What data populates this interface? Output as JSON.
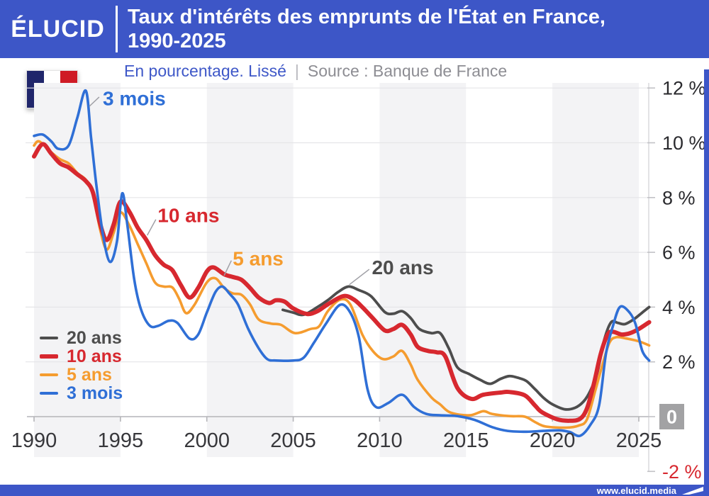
{
  "header": {
    "logo": "ÉLUCID",
    "title_line1": "Taux d'intérêts des emprunts de l'État en France,",
    "title_line2": "1990-2025"
  },
  "subtitle": {
    "measure": "En pourcentage. Lissé",
    "separator": "|",
    "source": "Source : Banque de France"
  },
  "footer": {
    "url": "www.elucid.media"
  },
  "icons": {
    "france_flag": "france-flag-icon",
    "elucid_pennant": "elucid-flag-icon"
  },
  "colors": {
    "brand_blue": "#3d56c7",
    "band_gray": "#f3f3f5",
    "gridline": "#e5e5e8",
    "zero_axis": "#b4b4b8",
    "axis_line": "#d0d0d4",
    "tick": "#c2c2c6",
    "x_label": "#37373b",
    "y_label": "#2a2a2e",
    "zero_box": "#a2a2a4",
    "negative_label": "#d7282f",
    "connector": "#a0a0a6"
  },
  "chart_data": {
    "type": "line",
    "title": "Taux d'intérêts des emprunts de l'État en France, 1990-2025",
    "subtitle": "En pourcentage. Lissé",
    "source": "Source : Banque de France",
    "xlim": [
      1989.5,
      2025.6
    ],
    "ylim": [
      -2,
      12
    ],
    "grid": true,
    "legend_position": "middle-left",
    "xticks": [
      {
        "v": 1990,
        "label": "1990"
      },
      {
        "v": 1995,
        "label": "1995"
      },
      {
        "v": 2000,
        "label": "2000"
      },
      {
        "v": 2005,
        "label": "2005"
      },
      {
        "v": 2010,
        "label": "2010"
      },
      {
        "v": 2015,
        "label": "2015"
      },
      {
        "v": 2020,
        "label": "2020"
      },
      {
        "v": 2025,
        "label": "2025"
      }
    ],
    "yticks": [
      {
        "v": 12,
        "label": "12 %"
      },
      {
        "v": 10,
        "label": "10 %"
      },
      {
        "v": 8,
        "label": "8 %"
      },
      {
        "v": 6,
        "label": "6 %"
      },
      {
        "v": 4,
        "label": "4 %"
      },
      {
        "v": 2,
        "label": "2 %"
      },
      {
        "v": 0,
        "label": "0",
        "boxed": true
      },
      {
        "v": -2,
        "label": "-2 %",
        "red": true
      }
    ],
    "bands": [
      [
        1990,
        1995
      ],
      [
        2000,
        2005
      ],
      [
        2010,
        2015
      ],
      [
        2020,
        2025
      ]
    ],
    "series": [
      {
        "name": "20 ans",
        "color": "#4d4d4d",
        "width": 3.8,
        "z": 1,
        "points": [
          [
            2004.4,
            3.9
          ],
          [
            2005,
            3.8
          ],
          [
            2005.6,
            3.72
          ],
          [
            2006.4,
            4.0
          ],
          [
            2007,
            4.25
          ],
          [
            2007.6,
            4.55
          ],
          [
            2008.2,
            4.75
          ],
          [
            2008.8,
            4.62
          ],
          [
            2009.5,
            4.4
          ],
          [
            2010.3,
            3.82
          ],
          [
            2010.8,
            3.76
          ],
          [
            2011.3,
            3.85
          ],
          [
            2011.8,
            3.6
          ],
          [
            2012.3,
            3.2
          ],
          [
            2013,
            3.05
          ],
          [
            2013.5,
            3.05
          ],
          [
            2014,
            2.5
          ],
          [
            2014.5,
            1.8
          ],
          [
            2015.2,
            1.55
          ],
          [
            2015.8,
            1.35
          ],
          [
            2016.4,
            1.2
          ],
          [
            2017,
            1.38
          ],
          [
            2017.5,
            1.48
          ],
          [
            2018,
            1.42
          ],
          [
            2018.5,
            1.3
          ],
          [
            2019,
            1.0
          ],
          [
            2019.5,
            0.68
          ],
          [
            2020,
            0.45
          ],
          [
            2020.7,
            0.27
          ],
          [
            2021.3,
            0.32
          ],
          [
            2021.8,
            0.55
          ],
          [
            2022.2,
            0.95
          ],
          [
            2022.6,
            1.6
          ],
          [
            2023,
            2.8
          ],
          [
            2023.4,
            3.45
          ],
          [
            2023.8,
            3.42
          ],
          [
            2024.2,
            3.38
          ],
          [
            2024.7,
            3.55
          ],
          [
            2025.2,
            3.8
          ],
          [
            2025.6,
            4.0
          ]
        ]
      },
      {
        "name": "10 ans",
        "color": "#d7282f",
        "width": 6,
        "z": 3,
        "points": [
          [
            1990,
            9.5
          ],
          [
            1990.5,
            9.95
          ],
          [
            1991,
            9.6
          ],
          [
            1991.5,
            9.25
          ],
          [
            1992,
            9.1
          ],
          [
            1992.5,
            8.85
          ],
          [
            1993,
            8.6
          ],
          [
            1993.4,
            8.2
          ],
          [
            1993.8,
            7.1
          ],
          [
            1994.2,
            6.45
          ],
          [
            1994.6,
            7.0
          ],
          [
            1995,
            7.85
          ],
          [
            1995.5,
            7.5
          ],
          [
            1996,
            6.9
          ],
          [
            1996.5,
            6.45
          ],
          [
            1997,
            5.9
          ],
          [
            1997.5,
            5.55
          ],
          [
            1998,
            5.35
          ],
          [
            1998.5,
            4.8
          ],
          [
            1999,
            4.35
          ],
          [
            1999.5,
            4.7
          ],
          [
            2000,
            5.3
          ],
          [
            2000.4,
            5.45
          ],
          [
            2001,
            5.2
          ],
          [
            2001.5,
            5.1
          ],
          [
            2002,
            5.0
          ],
          [
            2002.5,
            4.7
          ],
          [
            2003,
            4.35
          ],
          [
            2003.6,
            4.15
          ],
          [
            2004,
            4.25
          ],
          [
            2004.5,
            4.2
          ],
          [
            2005,
            3.95
          ],
          [
            2005.8,
            3.75
          ],
          [
            2006.4,
            3.85
          ],
          [
            2007,
            4.1
          ],
          [
            2007.9,
            4.4
          ],
          [
            2008.5,
            4.28
          ],
          [
            2009,
            4.0
          ],
          [
            2009.6,
            3.6
          ],
          [
            2010.3,
            3.15
          ],
          [
            2010.8,
            3.2
          ],
          [
            2011.3,
            3.35
          ],
          [
            2011.8,
            3.0
          ],
          [
            2012.2,
            2.55
          ],
          [
            2012.8,
            2.4
          ],
          [
            2013.3,
            2.35
          ],
          [
            2013.8,
            2.2
          ],
          [
            2014.5,
            1.05
          ],
          [
            2015.3,
            0.65
          ],
          [
            2016,
            0.8
          ],
          [
            2017,
            0.88
          ],
          [
            2017.5,
            0.9
          ],
          [
            2018.4,
            0.78
          ],
          [
            2019,
            0.4
          ],
          [
            2019.4,
            0.16
          ],
          [
            2020.3,
            -0.1
          ],
          [
            2021,
            -0.15
          ],
          [
            2021.6,
            -0.08
          ],
          [
            2022,
            0.3
          ],
          [
            2022.4,
            1.2
          ],
          [
            2022.8,
            2.3
          ],
          [
            2023.2,
            3.0
          ],
          [
            2023.5,
            3.1
          ],
          [
            2024,
            3.0
          ],
          [
            2024.5,
            3.05
          ],
          [
            2025,
            3.2
          ],
          [
            2025.6,
            3.45
          ]
        ]
      },
      {
        "name": "5 ans",
        "color": "#f59c2f",
        "width": 3.6,
        "z": 2,
        "points": [
          [
            1990,
            9.9
          ],
          [
            1990.3,
            10.05
          ],
          [
            1991,
            9.65
          ],
          [
            1991.5,
            9.4
          ],
          [
            1992,
            9.25
          ],
          [
            1992.5,
            8.9
          ],
          [
            1993,
            8.65
          ],
          [
            1993.4,
            8.2
          ],
          [
            1993.8,
            6.9
          ],
          [
            1994.2,
            6.1
          ],
          [
            1994.6,
            6.7
          ],
          [
            1995,
            7.45
          ],
          [
            1995.5,
            7.0
          ],
          [
            1996,
            6.3
          ],
          [
            1996.5,
            5.6
          ],
          [
            1997,
            4.9
          ],
          [
            1997.5,
            4.75
          ],
          [
            1998,
            4.72
          ],
          [
            1998.4,
            4.3
          ],
          [
            1998.8,
            3.78
          ],
          [
            1999.3,
            4.1
          ],
          [
            2000,
            4.9
          ],
          [
            2000.5,
            5.05
          ],
          [
            2001,
            4.7
          ],
          [
            2001.5,
            4.5
          ],
          [
            2002,
            4.45
          ],
          [
            2002.5,
            4.1
          ],
          [
            2003,
            3.55
          ],
          [
            2003.7,
            3.4
          ],
          [
            2004.3,
            3.35
          ],
          [
            2005.1,
            3.05
          ],
          [
            2006,
            3.2
          ],
          [
            2006.5,
            3.3
          ],
          [
            2007,
            3.85
          ],
          [
            2007.7,
            4.27
          ],
          [
            2008.3,
            4.1
          ],
          [
            2009,
            3.0
          ],
          [
            2009.6,
            2.4
          ],
          [
            2010.2,
            2.1
          ],
          [
            2010.8,
            2.2
          ],
          [
            2011.3,
            2.4
          ],
          [
            2011.8,
            1.9
          ],
          [
            2012.2,
            1.35
          ],
          [
            2013,
            0.7
          ],
          [
            2013.5,
            0.45
          ],
          [
            2014.1,
            0.15
          ],
          [
            2015.2,
            0.05
          ],
          [
            2016,
            0.2
          ],
          [
            2016.5,
            0.1
          ],
          [
            2017.5,
            0.02
          ],
          [
            2018.4,
            0.0
          ],
          [
            2019,
            -0.2
          ],
          [
            2019.6,
            -0.36
          ],
          [
            2020.8,
            -0.4
          ],
          [
            2021.5,
            -0.33
          ],
          [
            2022,
            -0.1
          ],
          [
            2022.5,
            1.0
          ],
          [
            2022.9,
            1.9
          ],
          [
            2023.3,
            2.7
          ],
          [
            2023.7,
            2.9
          ],
          [
            2024.3,
            2.85
          ],
          [
            2025,
            2.75
          ],
          [
            2025.6,
            2.6
          ]
        ]
      },
      {
        "name": "3 mois",
        "color": "#2f6fd6",
        "width": 3.6,
        "z": 4,
        "points": [
          [
            1990,
            10.25
          ],
          [
            1990.5,
            10.3
          ],
          [
            1991,
            10.05
          ],
          [
            1991.4,
            9.78
          ],
          [
            1992,
            9.9
          ],
          [
            1992.5,
            10.9
          ],
          [
            1993,
            11.9
          ],
          [
            1993.3,
            10.2
          ],
          [
            1993.6,
            8.5
          ],
          [
            1994,
            6.6
          ],
          [
            1994.4,
            5.65
          ],
          [
            1994.8,
            6.4
          ],
          [
            1995.1,
            8.15
          ],
          [
            1995.4,
            7.0
          ],
          [
            1995.8,
            5.0
          ],
          [
            1996.2,
            3.9
          ],
          [
            1996.7,
            3.32
          ],
          [
            1997.2,
            3.32
          ],
          [
            1997.8,
            3.5
          ],
          [
            1998.3,
            3.42
          ],
          [
            1999,
            2.85
          ],
          [
            1999.5,
            3.0
          ],
          [
            2000,
            3.8
          ],
          [
            2000.5,
            4.55
          ],
          [
            2000.9,
            4.75
          ],
          [
            2001.3,
            4.5
          ],
          [
            2001.8,
            4.1
          ],
          [
            2002.4,
            3.2
          ],
          [
            2003,
            2.5
          ],
          [
            2003.5,
            2.1
          ],
          [
            2004,
            2.05
          ],
          [
            2005,
            2.05
          ],
          [
            2005.6,
            2.15
          ],
          [
            2006.2,
            2.7
          ],
          [
            2006.9,
            3.4
          ],
          [
            2007.7,
            4.08
          ],
          [
            2008.3,
            3.8
          ],
          [
            2008.8,
            2.9
          ],
          [
            2009.3,
            1.0
          ],
          [
            2009.8,
            0.35
          ],
          [
            2010.5,
            0.5
          ],
          [
            2011.3,
            0.8
          ],
          [
            2012,
            0.35
          ],
          [
            2012.7,
            0.1
          ],
          [
            2013.5,
            0.05
          ],
          [
            2014.5,
            0.02
          ],
          [
            2015.5,
            -0.12
          ],
          [
            2016.5,
            -0.38
          ],
          [
            2017.4,
            -0.52
          ],
          [
            2018.5,
            -0.55
          ],
          [
            2019.5,
            -0.52
          ],
          [
            2020.4,
            -0.5
          ],
          [
            2021,
            -0.56
          ],
          [
            2021.6,
            -0.7
          ],
          [
            2022.2,
            -0.3
          ],
          [
            2022.7,
            0.4
          ],
          [
            2023.1,
            2.3
          ],
          [
            2023.5,
            3.3
          ],
          [
            2023.9,
            4.0
          ],
          [
            2024.4,
            3.85
          ],
          [
            2024.8,
            3.4
          ],
          [
            2025.2,
            2.4
          ],
          [
            2025.6,
            2.05
          ]
        ]
      }
    ],
    "annotations": [
      {
        "text": "3 mois",
        "color": "#2f6fd6",
        "lx": 1993.98,
        "ly": 11.62,
        "c1x": 1993.2,
        "c1y": 11.33,
        "c2x": 1993.77,
        "c2y": 11.67
      },
      {
        "text": "10 ans",
        "color": "#d7282f",
        "lx": 1997.15,
        "ly": 7.35,
        "c1x": 1996.55,
        "c1y": 6.62,
        "c2x": 1997.05,
        "c2y": 7.2
      },
      {
        "text": "5 ans",
        "color": "#f59c2f",
        "lx": 2001.5,
        "ly": 5.78,
        "c1x": 2001.0,
        "c1y": 5.15,
        "c2x": 2001.42,
        "c2y": 5.7
      },
      {
        "text": "20 ans",
        "color": "#4d4d4d",
        "lx": 2009.55,
        "ly": 5.45,
        "c1x": 2008.25,
        "c1y": 4.82,
        "c2x": 2009.4,
        "c2y": 5.38
      }
    ]
  }
}
